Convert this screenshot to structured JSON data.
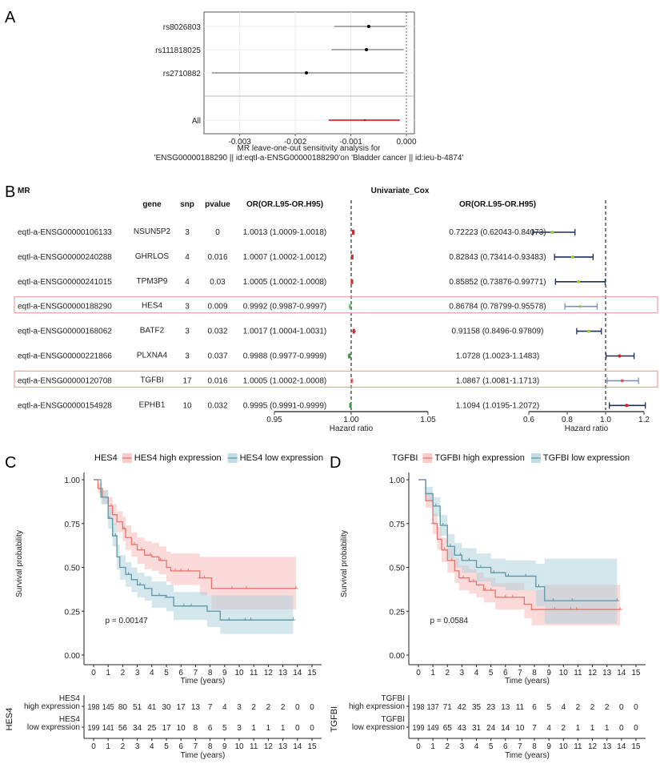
{
  "panel_labels": {
    "a": "A",
    "b": "B",
    "c": "C",
    "d": "D"
  },
  "colors": {
    "high": "#e8726c",
    "low": "#5b97a6",
    "high_fill": "#f7b7b3",
    "low_fill": "#a9cfda",
    "mr_pos": "#d62728",
    "mr_neg": "#2e9a3a",
    "cox_ci": "#1f2d5c",
    "cox_neg_point": "#9acd32",
    "cox_pos_point": "#e41a1c",
    "highlight_box": "#f2a0a0",
    "loo_all": "#e00000"
  },
  "chart_data": [
    {
      "panel": "A",
      "type": "scatter",
      "subtype": "forest",
      "xlim": [
        -0.0036,
        0.0001
      ],
      "xticks": [
        "-0.003",
        "-0.002",
        "-0.001",
        "0.000"
      ],
      "xtick_values": [
        -0.003,
        -0.002,
        -0.001,
        0.0
      ],
      "reference_line": 0,
      "grid": true,
      "xlabel_lines": [
        "MR leave-one-out sensitivity analysis for",
        "'ENSG00000188290 || id:eqtl-a-ENSG00000188290'on 'Bladder cancer || id:ieu-b-4874'"
      ],
      "rows": [
        {
          "label": "rs8026803",
          "b": -0.00068,
          "lo": -0.0013,
          "hi": -2e-05
        },
        {
          "label": "rs111818025",
          "b": -0.00072,
          "lo": -0.00135,
          "hi": -5e-05
        },
        {
          "label": "rs2710882",
          "b": -0.0018,
          "lo": -0.0035,
          "hi": -5e-05
        },
        {
          "label": "All",
          "b": -0.00075,
          "lo": -0.0014,
          "hi": -0.00012,
          "overall": true
        }
      ]
    },
    {
      "panel": "B",
      "type": "table",
      "title_left": "MR",
      "title_right": "Univariate_Cox",
      "headers": {
        "gene": "gene",
        "snp": "snp",
        "pvalue": "pvalue",
        "mr_or": "OR(OR.L95-OR.H95)",
        "cox_or": "OR(OR.L95-OR.H95)"
      },
      "mr_axis": {
        "lim": [
          0.95,
          1.05
        ],
        "ticks": [
          "0.95",
          "1.00",
          "1.05"
        ],
        "tick_values": [
          0.95,
          1.0,
          1.05
        ],
        "label": "Hazard ratio",
        "reference": 1.0
      },
      "cox_axis": {
        "lim": [
          0.6,
          1.2
        ],
        "ticks": [
          "0.6",
          "0.8",
          "1.0",
          "1.2"
        ],
        "tick_values": [
          0.6,
          0.8,
          1.0,
          1.2
        ],
        "label": "Hazard ratio",
        "reference": 1.0
      },
      "rows": [
        {
          "id": "eqtl-a-ENSG00000106133",
          "gene": "NSUN5P2",
          "snp": "3",
          "pvalue": "0",
          "mr_text": "1.0013 (1.0009-1.0018)",
          "mr": [
            1.0013,
            1.0009,
            1.0018
          ],
          "cox_text": "0.72223 (0.62043-0.84073)",
          "cox": [
            0.72223,
            0.62043,
            0.84073
          ],
          "highlight": false
        },
        {
          "id": "eqtl-a-ENSG00000240288",
          "gene": "GHRLOS",
          "snp": "4",
          "pvalue": "0.016",
          "mr_text": "1.0007 (1.0002-1.0012)",
          "mr": [
            1.0007,
            1.0002,
            1.0012
          ],
          "cox_text": "0.82843 (0.73414-0.93483)",
          "cox": [
            0.82843,
            0.73414,
            0.93483
          ],
          "highlight": false
        },
        {
          "id": "eqtl-a-ENSG00000241015",
          "gene": "TPM3P9",
          "snp": "4",
          "pvalue": "0.03",
          "mr_text": "1.0005 (1.0002-1.0008)",
          "mr": [
            1.0005,
            1.0002,
            1.0008
          ],
          "cox_text": "0.85852 (0.73876-0.99771)",
          "cox": [
            0.85852,
            0.73876,
            0.99771
          ],
          "highlight": false
        },
        {
          "id": "eqtl-a-ENSG00000188290",
          "gene": "HES4",
          "snp": "3",
          "pvalue": "0.009",
          "mr_text": "0.9992 (0.9987-0.9997)",
          "mr": [
            0.9992,
            0.9987,
            0.9997
          ],
          "cox_text": "0.86784 (0.78799-0.95578)",
          "cox": [
            0.86784,
            0.78799,
            0.95578
          ],
          "highlight": true
        },
        {
          "id": "eqtl-a-ENSG00000168062",
          "gene": "BATF2",
          "snp": "3",
          "pvalue": "0.032",
          "mr_text": "1.0017 (1.0004-1.0031)",
          "mr": [
            1.0017,
            1.0004,
            1.0031
          ],
          "cox_text": "0.91158 (0.8496-0.97809)",
          "cox": [
            0.91158,
            0.8496,
            0.97809
          ],
          "highlight": false
        },
        {
          "id": "eqtl-a-ENSG00000221866",
          "gene": "PLXNA4",
          "snp": "3",
          "pvalue": "0.037",
          "mr_text": "0.9988 (0.9977-0.9999)",
          "mr": [
            0.9988,
            0.9977,
            0.9999
          ],
          "cox_text": "1.0728 (1.0023-1.1483)",
          "cox": [
            1.0728,
            1.0023,
            1.1483
          ],
          "highlight": false
        },
        {
          "id": "eqtl-a-ENSG00000120708",
          "gene": "TGFBI",
          "snp": "17",
          "pvalue": "0.016",
          "mr_text": "1.0005 (1.0002-1.0008)",
          "mr": [
            1.0005,
            1.0002,
            1.0008
          ],
          "cox_text": "1.0867 (1.0081-1.1713)",
          "cox": [
            1.0867,
            1.0081,
            1.1713
          ],
          "highlight": true
        },
        {
          "id": "eqtl-a-ENSG00000154928",
          "gene": "EPHB1",
          "snp": "10",
          "pvalue": "0.032",
          "mr_text": "0.9995 (0.9991-0.9999)",
          "mr": [
            0.9995,
            0.9991,
            0.9999
          ],
          "cox_text": "1.1094 (1.0195-1.2072)",
          "cox": [
            1.1094,
            1.0195,
            1.2072
          ],
          "highlight": false
        }
      ]
    },
    {
      "panel": "C",
      "type": "line",
      "subtype": "kaplan-meier",
      "legend_title": "HES4",
      "legend_position": "top",
      "ylabel": "Survival probability",
      "xlabel": "Time (years)",
      "xlim": [
        0,
        15
      ],
      "ylim": [
        0,
        1
      ],
      "xticks": [
        "0",
        "1",
        "2",
        "3",
        "4",
        "5",
        "6",
        "7",
        "8",
        "9",
        "10",
        "11",
        "12",
        "13",
        "14",
        "15"
      ],
      "yticks": [
        "0.00",
        "0.25",
        "0.50",
        "0.75",
        "1.00"
      ],
      "pvalue": "p = 0.00147",
      "risk_table_title": "HES4",
      "series": [
        {
          "name": "HES4 high expression",
          "label_lines": [
            "HES4",
            "high expression"
          ],
          "color_key": "high",
          "steps": [
            [
              0,
              1,
              1,
              1
            ],
            [
              0.3,
              0.95,
              0.92,
              0.98
            ],
            [
              0.6,
              0.9,
              0.86,
              0.94
            ],
            [
              1,
              0.85,
              0.8,
              0.9
            ],
            [
              1.3,
              0.8,
              0.74,
              0.86
            ],
            [
              1.6,
              0.76,
              0.7,
              0.82
            ],
            [
              2,
              0.72,
              0.65,
              0.79
            ],
            [
              2.2,
              0.67,
              0.6,
              0.74
            ],
            [
              2.6,
              0.63,
              0.56,
              0.7
            ],
            [
              3,
              0.6,
              0.52,
              0.67
            ],
            [
              3.5,
              0.57,
              0.49,
              0.65
            ],
            [
              4,
              0.56,
              0.48,
              0.64
            ],
            [
              4.5,
              0.54,
              0.46,
              0.62
            ],
            [
              5,
              0.5,
              0.42,
              0.59
            ],
            [
              5.3,
              0.48,
              0.4,
              0.58
            ],
            [
              7.3,
              0.44,
              0.34,
              0.56
            ],
            [
              8.1,
              0.38,
              0.26,
              0.56
            ],
            [
              13.9,
              0.38,
              0.26,
              0.56
            ]
          ],
          "censor": [
            1.2,
            2.1,
            2.8,
            3.3,
            3.9,
            4.6,
            5.6,
            6.0,
            6.5,
            7.3,
            7.6,
            9.5,
            10.5,
            13.9
          ],
          "at_risk": [
            "198",
            "145",
            "80",
            "51",
            "41",
            "30",
            "17",
            "13",
            "7",
            "4",
            "3",
            "2",
            "2",
            "2",
            "0",
            "0"
          ]
        },
        {
          "name": "HES4 low expression",
          "label_lines": [
            "HES4",
            "low expression"
          ],
          "color_key": "low",
          "steps": [
            [
              0,
              1,
              1,
              1
            ],
            [
              0.5,
              0.9,
              0.86,
              0.94
            ],
            [
              1,
              0.78,
              0.72,
              0.84
            ],
            [
              1.3,
              0.68,
              0.62,
              0.75
            ],
            [
              1.6,
              0.56,
              0.49,
              0.63
            ],
            [
              1.8,
              0.5,
              0.43,
              0.57
            ],
            [
              2.2,
              0.46,
              0.39,
              0.53
            ],
            [
              2.6,
              0.43,
              0.36,
              0.5
            ],
            [
              3,
              0.4,
              0.33,
              0.47
            ],
            [
              3.5,
              0.38,
              0.31,
              0.45
            ],
            [
              4,
              0.34,
              0.27,
              0.42
            ],
            [
              5,
              0.33,
              0.25,
              0.4
            ],
            [
              5.5,
              0.28,
              0.2,
              0.36
            ],
            [
              7.8,
              0.25,
              0.16,
              0.34
            ],
            [
              8.7,
              0.2,
              0.12,
              0.34
            ],
            [
              13.7,
              0.2,
              0.12,
              0.34
            ]
          ],
          "censor": [
            1.1,
            1.5,
            2.4,
            3.2,
            4.5,
            5.0,
            6.2,
            6.7,
            9.3,
            10.4,
            10.8,
            13.7
          ],
          "at_risk": [
            "199",
            "141",
            "56",
            "34",
            "25",
            "17",
            "10",
            "8",
            "6",
            "5",
            "3",
            "1",
            "1",
            "1",
            "0",
            "0"
          ]
        }
      ]
    },
    {
      "panel": "D",
      "type": "line",
      "subtype": "kaplan-meier",
      "legend_title": "TGFBI",
      "legend_position": "top",
      "ylabel": "Survival probability",
      "xlabel": "Time (years)",
      "xlim": [
        0,
        15
      ],
      "ylim": [
        0,
        1
      ],
      "xticks": [
        "0",
        "1",
        "2",
        "3",
        "4",
        "5",
        "6",
        "7",
        "8",
        "9",
        "10",
        "11",
        "12",
        "13",
        "14",
        "15"
      ],
      "yticks": [
        "0.00",
        "0.25",
        "0.50",
        "0.75",
        "1.00"
      ],
      "pvalue": "p = 0.0584",
      "risk_table_title": "TGFBI",
      "series": [
        {
          "name": "TGFBI high expression",
          "label_lines": [
            "TGFBI",
            "high expression"
          ],
          "color_key": "high",
          "steps": [
            [
              0,
              1,
              1,
              1
            ],
            [
              0.5,
              0.88,
              0.84,
              0.93
            ],
            [
              1,
              0.75,
              0.69,
              0.81
            ],
            [
              1.3,
              0.66,
              0.6,
              0.73
            ],
            [
              1.6,
              0.6,
              0.53,
              0.67
            ],
            [
              2,
              0.54,
              0.47,
              0.61
            ],
            [
              2.5,
              0.48,
              0.41,
              0.55
            ],
            [
              2.8,
              0.44,
              0.37,
              0.51
            ],
            [
              3.5,
              0.42,
              0.35,
              0.49
            ],
            [
              4,
              0.4,
              0.33,
              0.47
            ],
            [
              4.5,
              0.37,
              0.3,
              0.44
            ],
            [
              5.3,
              0.33,
              0.26,
              0.41
            ],
            [
              7.3,
              0.29,
              0.21,
              0.37
            ],
            [
              7.8,
              0.26,
              0.17,
              0.37
            ],
            [
              8.7,
              0.26,
              0.17,
              0.4
            ],
            [
              13.9,
              0.26,
              0.17,
              0.4
            ]
          ],
          "censor": [
            1.0,
            1.8,
            2.3,
            3.1,
            3.8,
            4.6,
            5.0,
            6.0,
            6.5,
            9.4,
            10.5,
            10.9,
            13.9
          ],
          "at_risk": [
            "198",
            "137",
            "71",
            "42",
            "35",
            "23",
            "13",
            "11",
            "6",
            "5",
            "4",
            "2",
            "2",
            "2",
            "0",
            "0"
          ]
        },
        {
          "name": "TGFBI low expression",
          "label_lines": [
            "TGFBI",
            "low expression"
          ],
          "color_key": "low",
          "steps": [
            [
              0,
              1,
              1,
              1
            ],
            [
              0.5,
              0.92,
              0.88,
              0.96
            ],
            [
              1,
              0.85,
              0.79,
              0.9
            ],
            [
              1.5,
              0.74,
              0.68,
              0.8
            ],
            [
              2,
              0.62,
              0.55,
              0.69
            ],
            [
              2.5,
              0.57,
              0.5,
              0.64
            ],
            [
              3,
              0.54,
              0.47,
              0.61
            ],
            [
              4,
              0.5,
              0.42,
              0.58
            ],
            [
              5,
              0.47,
              0.39,
              0.55
            ],
            [
              6,
              0.45,
              0.37,
              0.54
            ],
            [
              8.1,
              0.39,
              0.28,
              0.52
            ],
            [
              8.7,
              0.31,
              0.18,
              0.55
            ],
            [
              13.7,
              0.31,
              0.18,
              0.55
            ]
          ],
          "censor": [
            1.2,
            1.7,
            2.2,
            2.9,
            3.5,
            4.3,
            5.2,
            6.2,
            7.4,
            8.3,
            9.3,
            10.6,
            13.7
          ],
          "at_risk": [
            "199",
            "149",
            "65",
            "43",
            "31",
            "24",
            "14",
            "10",
            "7",
            "4",
            "2",
            "1",
            "1",
            "1",
            "0",
            "0"
          ]
        }
      ]
    }
  ]
}
